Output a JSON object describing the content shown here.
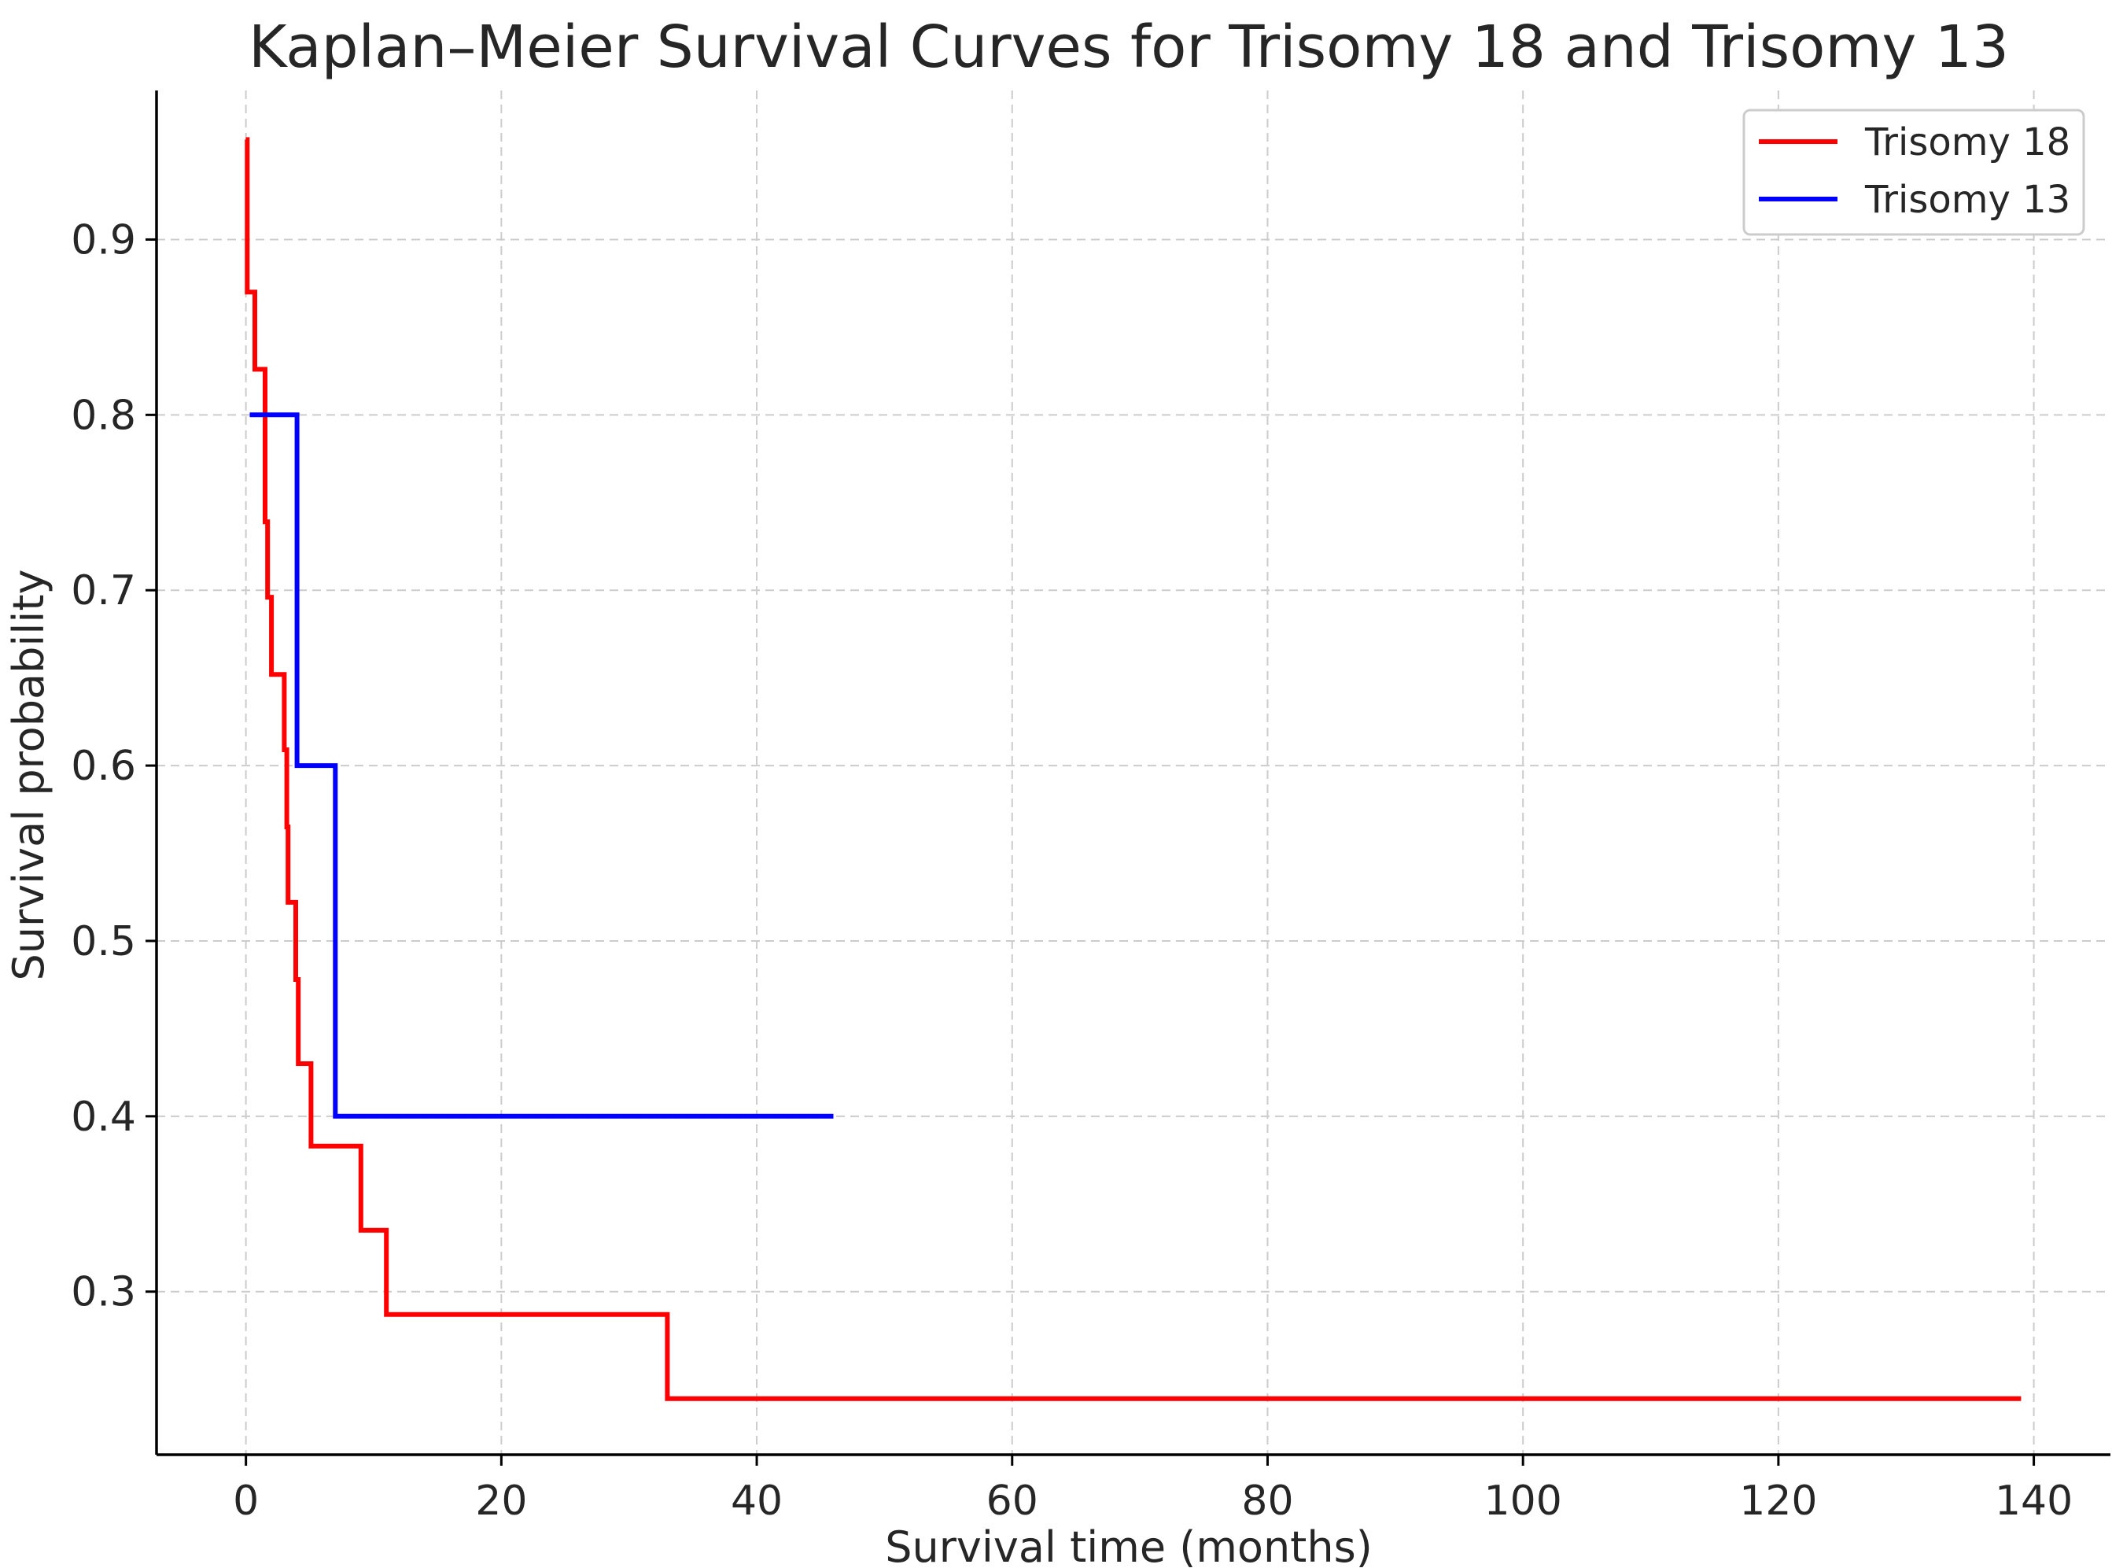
{
  "chart_data": {
    "type": "line",
    "step": "post",
    "title": "Kaplan–Meier Survival Curves for Trisomy 18 and Trisomy 13",
    "xlabel": "Survival time (months)",
    "ylabel": "Survival probability",
    "xlim": [
      -7,
      146
    ],
    "ylim": [
      0.207,
      0.985
    ],
    "xticks": [
      0,
      20,
      40,
      60,
      80,
      100,
      120,
      140
    ],
    "xtick_labels": [
      "0",
      "20",
      "40",
      "60",
      "80",
      "100",
      "120",
      "140"
    ],
    "yticks": [
      0.3,
      0.4,
      0.5,
      0.6,
      0.7,
      0.8,
      0.9
    ],
    "ytick_labels": [
      "0.3",
      "0.4",
      "0.5",
      "0.6",
      "0.7",
      "0.8",
      "0.9"
    ],
    "grid": true,
    "legend": {
      "placement": "top-right"
    },
    "series": [
      {
        "name": "Trisomy 18",
        "color": "#ff0000",
        "x": [
          0,
          0.1,
          0.7,
          1.5,
          1.7,
          2.0,
          3.0,
          3.2,
          3.3,
          3.9,
          4.1,
          5.1,
          9.0,
          11.0,
          33.0,
          139
        ],
        "y": [
          0.957,
          0.87,
          0.826,
          0.739,
          0.696,
          0.652,
          0.609,
          0.565,
          0.522,
          0.478,
          0.43,
          0.383,
          0.335,
          0.287,
          0.239,
          0.239
        ]
      },
      {
        "name": "Trisomy 13",
        "color": "#0000ff",
        "x": [
          0.3,
          4.0,
          7.0,
          46.0
        ],
        "y": [
          0.8,
          0.6,
          0.4,
          0.4
        ]
      }
    ]
  }
}
